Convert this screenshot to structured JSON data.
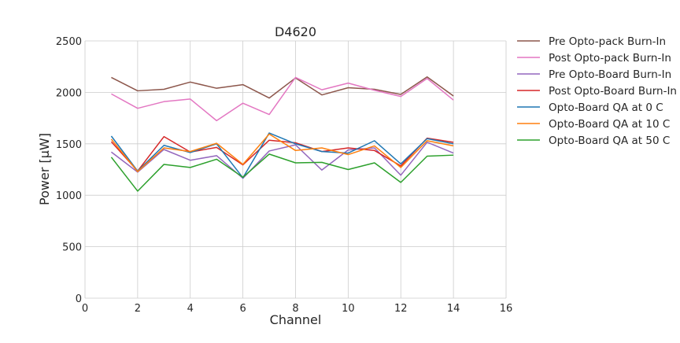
{
  "chart_data": {
    "type": "line",
    "title": "D4620",
    "xlabel": "Channel",
    "ylabel": "Power [μW]",
    "xlim": [
      0,
      16
    ],
    "ylim": [
      0,
      2500
    ],
    "xticks": [
      0,
      2,
      4,
      6,
      8,
      10,
      12,
      14,
      16
    ],
    "yticks": [
      0,
      500,
      1000,
      1500,
      2000,
      2500
    ],
    "grid": true,
    "legend_position": "outside-right-top",
    "x": [
      1,
      2,
      3,
      4,
      5,
      6,
      7,
      8,
      9,
      10,
      11,
      12,
      13,
      14
    ],
    "series": [
      {
        "name": "Pre Opto-pack Burn-In",
        "color": "#8c564b",
        "values": [
          2145,
          2015,
          2030,
          2100,
          2040,
          2075,
          1945,
          2140,
          1975,
          2045,
          2030,
          1980,
          2150,
          1965
        ]
      },
      {
        "name": "Post Opto-pack Burn-In",
        "color": "#e377c2",
        "values": [
          1985,
          1845,
          1910,
          1935,
          1725,
          1895,
          1785,
          2145,
          2025,
          2090,
          2020,
          1960,
          2135,
          1925
        ]
      },
      {
        "name": "Pre Opto-Board Burn-In",
        "color": "#9467bd",
        "values": [
          1420,
          1225,
          1445,
          1340,
          1385,
          1165,
          1430,
          1490,
          1245,
          1440,
          1460,
          1195,
          1515,
          1410
        ]
      },
      {
        "name": "Post Opto-Board Burn-In",
        "color": "#d62728",
        "values": [
          1520,
          1235,
          1570,
          1420,
          1465,
          1295,
          1535,
          1510,
          1425,
          1460,
          1435,
          1285,
          1555,
          1515
        ]
      },
      {
        "name": "Opto-Board QA at 0 C",
        "color": "#1f77b4",
        "values": [
          1575,
          1235,
          1485,
          1415,
          1500,
          1170,
          1605,
          1500,
          1425,
          1410,
          1530,
          1305,
          1550,
          1500
        ]
      },
      {
        "name": "Opto-Board QA at 10 C",
        "color": "#ff7f0e",
        "values": [
          1545,
          1230,
          1460,
          1425,
          1505,
          1300,
          1595,
          1435,
          1460,
          1395,
          1480,
          1270,
          1530,
          1480
        ]
      },
      {
        "name": "Opto-Board QA at 50 C",
        "color": "#2ca02c",
        "values": [
          1370,
          1040,
          1300,
          1270,
          1350,
          1175,
          1400,
          1315,
          1320,
          1250,
          1315,
          1125,
          1380,
          1390
        ]
      }
    ]
  }
}
